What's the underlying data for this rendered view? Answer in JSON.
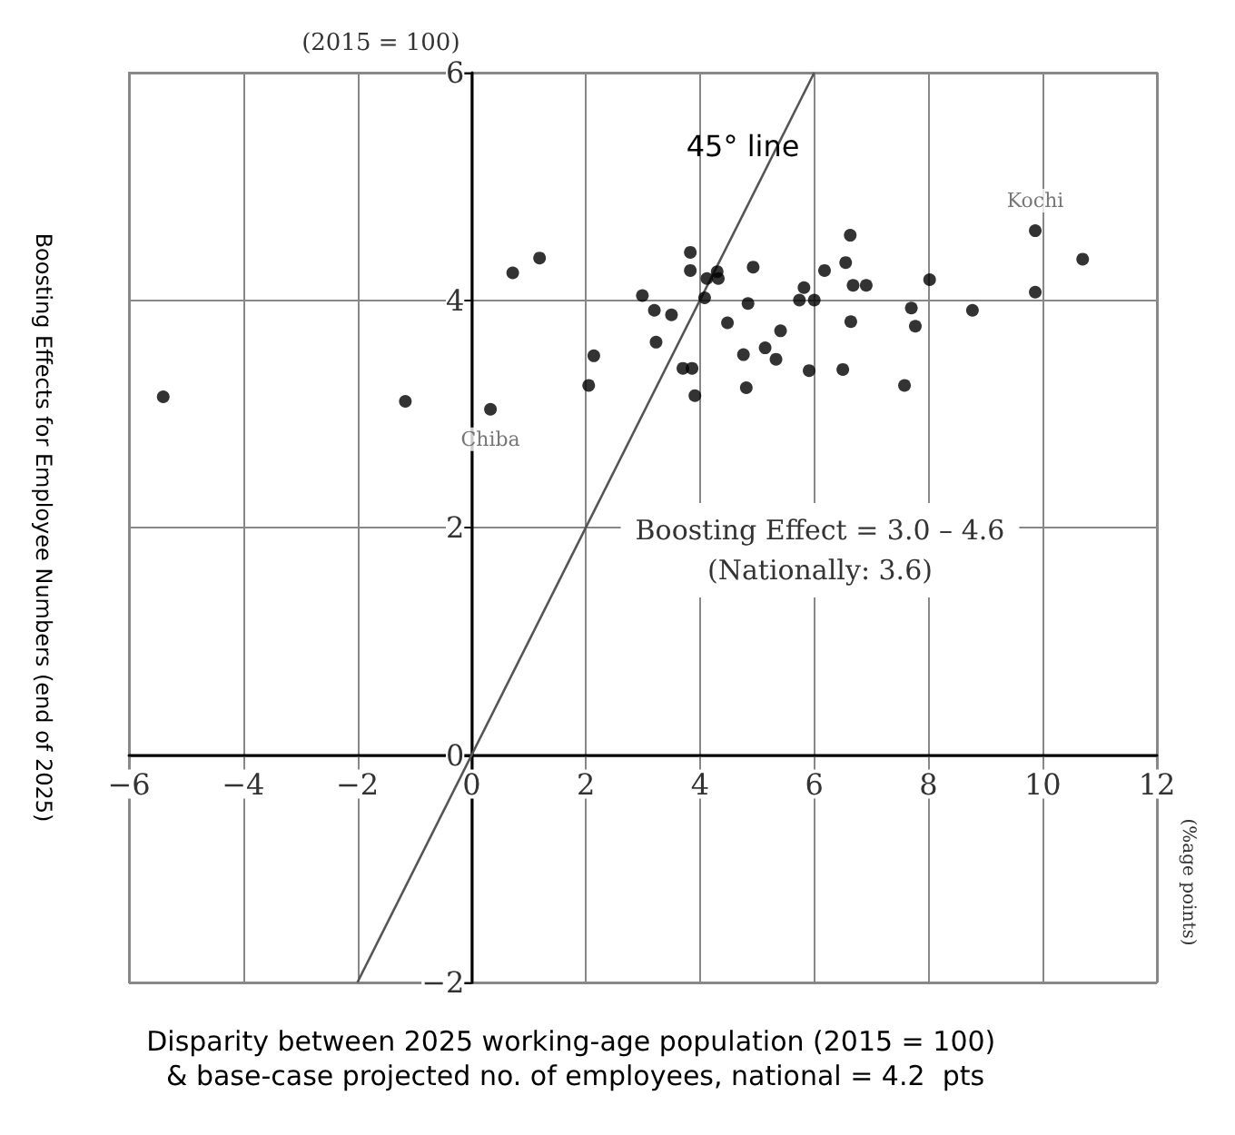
{
  "chart_data": {
    "type": "scatter",
    "xlabel": "Disparity between 2025 working-age population (2015 = 100)\n & base-case projected no. of employees, national = 4.2  pts",
    "ylabel": "Boosting Effects for Employee Numbers (end of 2025)",
    "series": [
      {
        "color": "#000000",
        "marker": "circle",
        "x": [
          -5.4,
          -1.16,
          0.33,
          0.72,
          1.19,
          2.14,
          2.05,
          2.99,
          3.2,
          3.5,
          3.23,
          3.7,
          3.86,
          3.91,
          3.83,
          3.83,
          4.08,
          4.12,
          4.3,
          4.32,
          4.48,
          4.84,
          4.76,
          4.81,
          4.93,
          5.41,
          5.14,
          5.33,
          5.82,
          5.74,
          6.0,
          5.91,
          6.18,
          6.55,
          6.63,
          6.68,
          6.91,
          6.64,
          6.5,
          7.7,
          7.77,
          7.58,
          8.02,
          8.77,
          9.87,
          9.87,
          10.7
        ],
        "values": [
          3.15,
          3.11,
          3.04,
          4.24,
          4.37,
          3.51,
          3.25,
          4.04,
          3.91,
          3.87,
          3.63,
          3.4,
          3.4,
          3.16,
          4.42,
          4.26,
          4.02,
          4.19,
          4.25,
          4.19,
          3.8,
          3.97,
          3.52,
          3.23,
          4.29,
          3.73,
          3.58,
          3.48,
          4.11,
          4.0,
          4.0,
          3.38,
          4.26,
          4.33,
          4.57,
          4.13,
          4.13,
          3.81,
          3.39,
          3.93,
          3.77,
          3.25,
          4.18,
          3.91,
          4.61,
          4.07,
          4.36
        ]
      },
      {
        "type": "line",
        "color": "#555555",
        "marker": "none",
        "x": [
          -2,
          6
        ],
        "values": [
          -2,
          6
        ]
      }
    ],
    "xlim": [
      -6,
      12
    ],
    "xticks": [
      -6,
      -4,
      -2,
      0,
      2,
      4,
      6,
      8,
      10,
      12
    ],
    "ylim": [
      -2,
      6
    ],
    "yticks": [
      -2,
      0,
      2,
      4,
      6
    ],
    "grid": true,
    "annotations": [
      "45° line",
      {
        "text": "Kochi",
        "x": 9.87,
        "y": 4.61
      },
      {
        "text": "Chiba",
        "x": 0.33,
        "y": 3.04
      },
      "Boosting Effect = 3.0 – 4.6\n(Nationally: 3.6)",
      "(2015 = 100)",
      "(%age points)"
    ]
  }
}
